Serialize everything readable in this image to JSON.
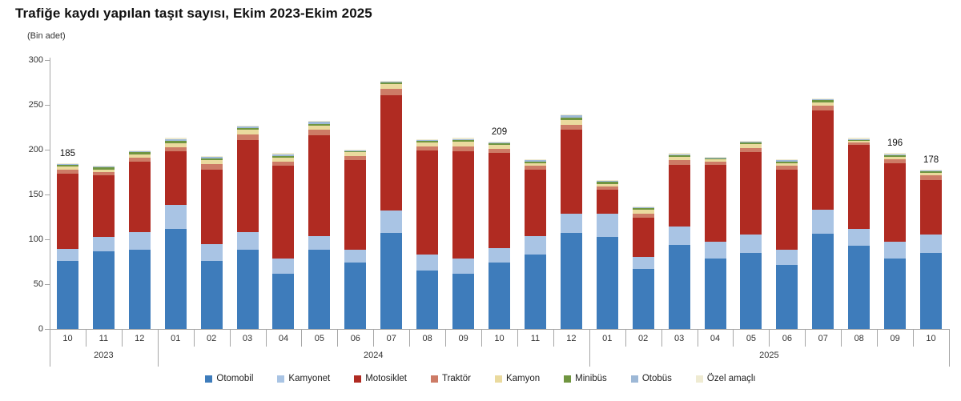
{
  "title": "Trafiğe kaydı yapılan taşıt sayısı, Ekim 2023-Ekim 2025",
  "unit_label": "(Bin adet)",
  "chart_data": {
    "type": "bar",
    "stacked": true,
    "grid": false,
    "legend_position": "bottom",
    "y_axis": {
      "min": 0,
      "max": 300,
      "step": 50,
      "ticks": [
        300,
        250,
        200,
        150,
        100,
        50,
        0
      ]
    },
    "categories": [
      "10",
      "11",
      "12",
      "01",
      "02",
      "03",
      "04",
      "05",
      "06",
      "07",
      "08",
      "09",
      "10",
      "11",
      "12",
      "01",
      "02",
      "03",
      "04",
      "05",
      "06",
      "07",
      "08",
      "09",
      "10"
    ],
    "year_groups": [
      {
        "label": "2023",
        "start": 0,
        "end": 3
      },
      {
        "label": "2024",
        "start": 3,
        "end": 15
      },
      {
        "label": "2025",
        "start": 15,
        "end": 25
      }
    ],
    "series": [
      {
        "name": "Otomobil",
        "color": "#3E7CBB",
        "values": [
          76,
          87,
          88,
          112,
          76,
          88,
          62,
          88,
          74,
          107,
          65,
          62,
          74,
          83,
          107,
          103,
          67,
          94,
          79,
          85,
          71,
          106,
          93,
          79,
          85
        ]
      },
      {
        "name": "Kamyonet",
        "color": "#A9C4E4",
        "values": [
          13,
          16,
          20,
          26,
          19,
          20,
          17,
          16,
          14,
          25,
          18,
          17,
          16,
          21,
          22,
          26,
          13,
          20,
          18,
          20,
          17,
          27,
          19,
          18,
          20
        ]
      },
      {
        "name": "Motosiklet",
        "color": "#B02B22",
        "values": [
          84,
          68,
          79,
          60,
          83,
          103,
          103,
          112,
          100,
          129,
          116,
          119,
          106,
          74,
          93,
          26,
          44,
          69,
          86,
          92,
          90,
          111,
          93,
          88,
          61
        ]
      },
      {
        "name": "Traktör",
        "color": "#CD7B66",
        "values": [
          5,
          4,
          4,
          5,
          6,
          6,
          5,
          6,
          5,
          7,
          5,
          6,
          5,
          4,
          6,
          4,
          5,
          5,
          4,
          5,
          4,
          5,
          3,
          4,
          5
        ]
      },
      {
        "name": "Kamyon",
        "color": "#EADA9E",
        "values": [
          3,
          3,
          4,
          4,
          4,
          5,
          4,
          5,
          4,
          5,
          4,
          5,
          4,
          3,
          5,
          3,
          4,
          4,
          2,
          4,
          3,
          4,
          2,
          3,
          3
        ]
      },
      {
        "name": "Minibüs",
        "color": "#709540",
        "values": [
          2,
          2,
          2,
          3,
          2,
          2,
          2,
          2,
          1,
          2,
          2,
          2,
          2,
          2,
          3,
          2,
          2,
          2,
          1,
          2,
          2,
          2,
          1,
          2,
          2
        ]
      },
      {
        "name": "Otobüs",
        "color": "#9DB8D6",
        "values": [
          1,
          1,
          1,
          2,
          2,
          2,
          2,
          2,
          1,
          1,
          1,
          1,
          1,
          1,
          2,
          1,
          1,
          1,
          1,
          1,
          1,
          1,
          1,
          1,
          1
        ]
      },
      {
        "name": "Özel amaçlı",
        "color": "#EFEBD2",
        "values": [
          1,
          1,
          1,
          1,
          1,
          1,
          1,
          1,
          1,
          1,
          1,
          1,
          1,
          1,
          1,
          1,
          1,
          1,
          1,
          1,
          1,
          1,
          1,
          1,
          1
        ]
      }
    ],
    "point_labels": [
      {
        "index": 0,
        "text": "185"
      },
      {
        "index": 12,
        "text": "209"
      },
      {
        "index": 23,
        "text": "196"
      },
      {
        "index": 24,
        "text": "178"
      }
    ]
  },
  "legend": {
    "items": [
      "Otomobil",
      "Kamyonet",
      "Motosiklet",
      "Traktör",
      "Kamyon",
      "Minibüs",
      "Otobüs",
      "Özel amaçlı"
    ]
  }
}
